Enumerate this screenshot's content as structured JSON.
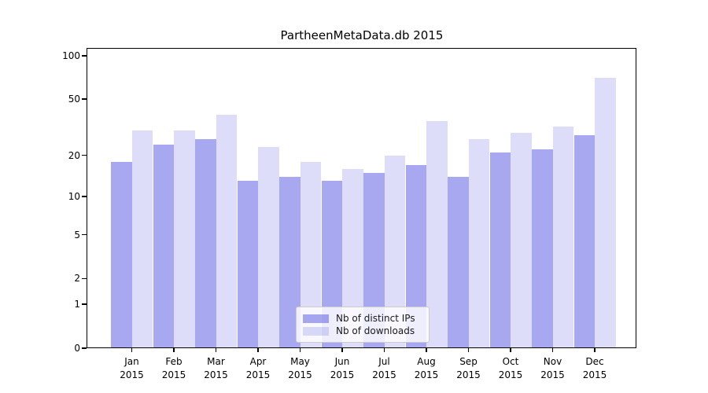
{
  "title": "PartheenMetaData.db 2015",
  "chart_data": {
    "type": "bar",
    "title": "PartheenMetaData.db 2015",
    "categories": [
      "Jan 2015",
      "Feb 2015",
      "Mar 2015",
      "Apr 2015",
      "May 2015",
      "Jun 2015",
      "Jul 2015",
      "Aug 2015",
      "Sep 2015",
      "Oct 2015",
      "Nov 2015",
      "Dec 2015"
    ],
    "series": [
      {
        "name": "Nb of distinct IPs",
        "color": "#a8a8f0",
        "rgba": "rgba(85,85,226,0.51)",
        "values": [
          18,
          24,
          26,
          13,
          14,
          13,
          15,
          17,
          14,
          21,
          22,
          28
        ]
      },
      {
        "name": "Nb of downloads",
        "color": "#dcdcf9",
        "rgba": "rgba(85,85,226,0.20)",
        "values": [
          30,
          30,
          39,
          23,
          18,
          16,
          20,
          35,
          26,
          29,
          32,
          70
        ]
      }
    ],
    "xlabel": "",
    "ylabel": "",
    "yscale": "log1p",
    "y_ticks": [
      0,
      1,
      2,
      5,
      10,
      20,
      50,
      100
    ],
    "y_minor_ticks": [
      3,
      4,
      6,
      7,
      8,
      9,
      30,
      40,
      60,
      70,
      80,
      90
    ],
    "ylim": [
      0,
      113
    ],
    "grid": true,
    "legend_position": "lower center"
  },
  "x_axis": {
    "months": [
      "Jan",
      "Feb",
      "Mar",
      "Apr",
      "May",
      "Jun",
      "Jul",
      "Aug",
      "Sep",
      "Oct",
      "Nov",
      "Dec"
    ],
    "year": "2015"
  },
  "colors": {
    "bar_distinct_ips": "#a8a8f0",
    "bar_downloads": "#dcdcf9",
    "grid_major": "#c9c9c9",
    "grid_minor": "#e8e8e8",
    "axis": "#000000"
  }
}
